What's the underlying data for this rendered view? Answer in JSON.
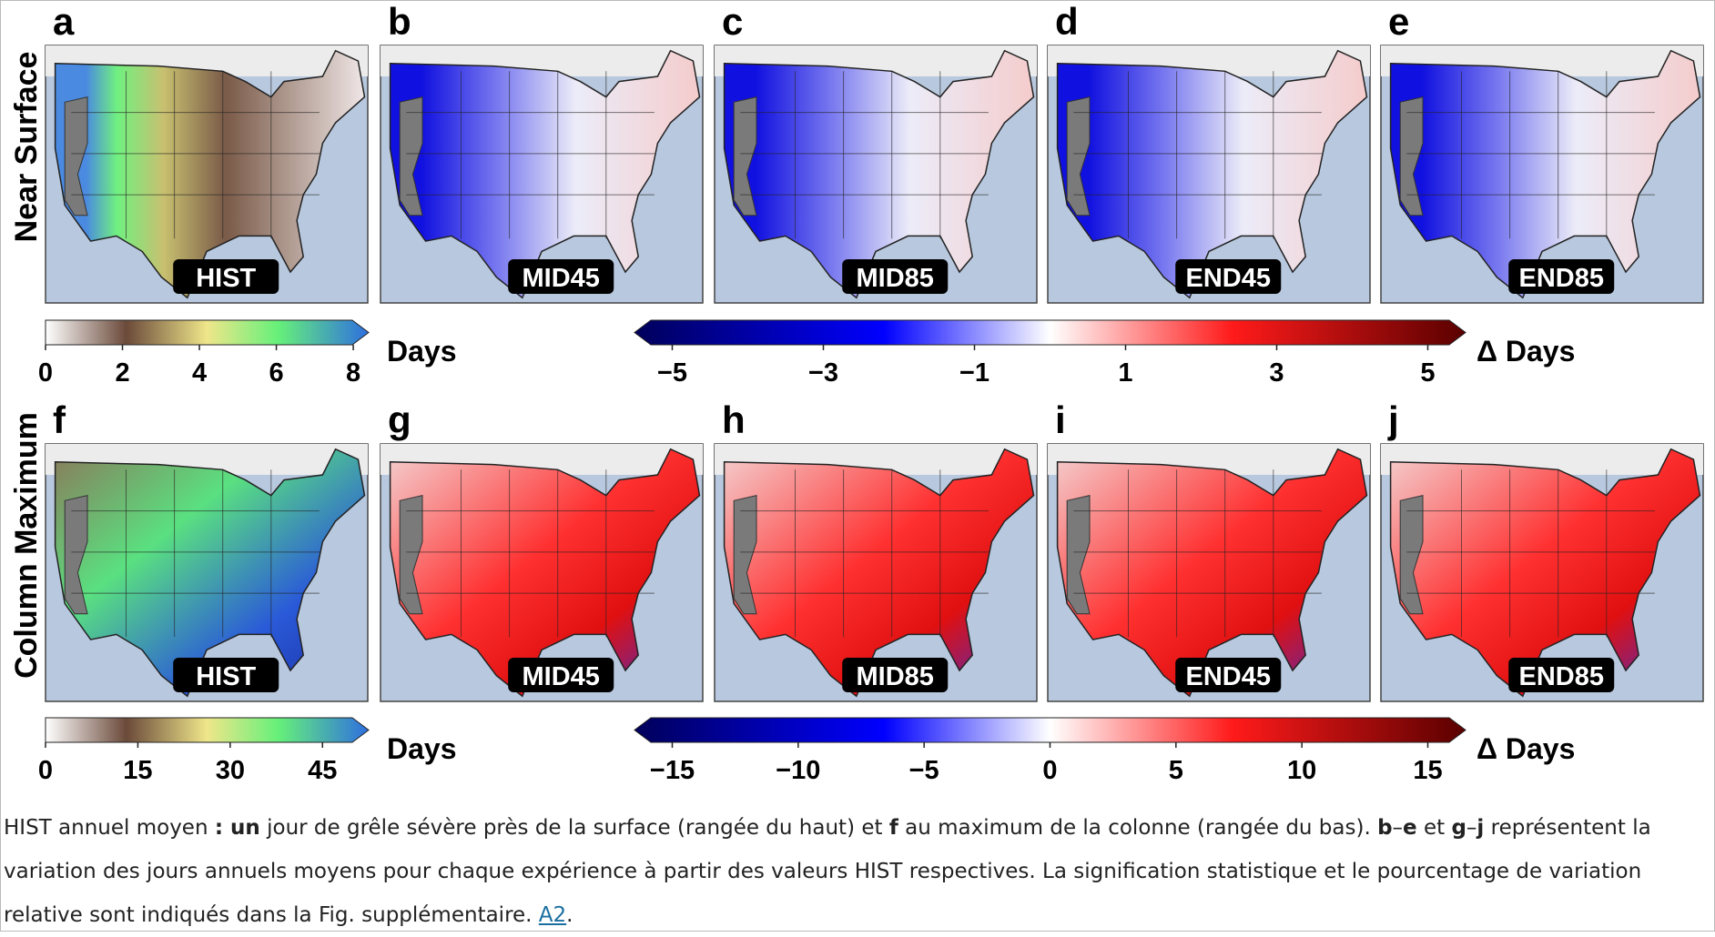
{
  "figure": {
    "rows": [
      {
        "label": "Near Surface",
        "panels": [
          {
            "letter": "a",
            "scenario": "HIST"
          },
          {
            "letter": "b",
            "scenario": "MID45"
          },
          {
            "letter": "c",
            "scenario": "MID85"
          },
          {
            "letter": "d",
            "scenario": "END45"
          },
          {
            "letter": "e",
            "scenario": "END85"
          }
        ],
        "hist_colorbar": {
          "range": [
            0,
            8.4
          ],
          "ticks": [
            0,
            2,
            4,
            6,
            8
          ],
          "unit": "Days"
        },
        "delta_colorbar": {
          "range": [
            -5.5,
            5.5
          ],
          "ticks": [
            {
              "value": -5,
              "label": "−5"
            },
            {
              "value": -3,
              "label": "−3"
            },
            {
              "value": -1,
              "label": "−1"
            },
            1,
            3,
            5
          ],
          "unit": "Δ Days"
        }
      },
      {
        "label": "Column Maximum",
        "panels": [
          {
            "letter": "f",
            "scenario": "HIST"
          },
          {
            "letter": "g",
            "scenario": "MID45"
          },
          {
            "letter": "h",
            "scenario": "MID85"
          },
          {
            "letter": "i",
            "scenario": "END45"
          },
          {
            "letter": "j",
            "scenario": "END85"
          }
        ],
        "hist_colorbar": {
          "range": [
            0,
            52.5
          ],
          "ticks": [
            0,
            15,
            30,
            45
          ],
          "unit": "Days"
        },
        "delta_colorbar": {
          "range": [
            -16.5,
            16.5
          ],
          "ticks": [
            {
              "value": -15,
              "label": "−15"
            },
            {
              "value": -10,
              "label": "−10"
            },
            {
              "value": -5,
              "label": "−5"
            },
            0,
            5,
            10,
            15
          ],
          "unit": "Δ Days"
        }
      }
    ]
  },
  "caption": [
    {
      "text": "HIST annuel moyen "
    },
    {
      "text": ": un",
      "bold": true
    },
    {
      "text": " jour de grêle sévère près de la surface (rangée du haut) et "
    },
    {
      "text": "f",
      "bold": true
    },
    {
      "text": " au maximum de la colonne (rangée du bas). "
    },
    {
      "text": "b",
      "bold": true
    },
    {
      "text": "–"
    },
    {
      "text": "e",
      "bold": true
    },
    {
      "text": " et "
    },
    {
      "text": "g",
      "bold": true
    },
    {
      "text": "–"
    },
    {
      "text": "j",
      "bold": true
    },
    {
      "text": " représentent la variation des jours annuels moyens pour chaque expérience à partir des valeurs HIST respectives. La signification statistique et le pourcentage de variation relative sont indiqués dans la Fig. supplémentaire. "
    },
    {
      "text": "A2",
      "link": true
    },
    {
      "text": "."
    }
  ]
}
